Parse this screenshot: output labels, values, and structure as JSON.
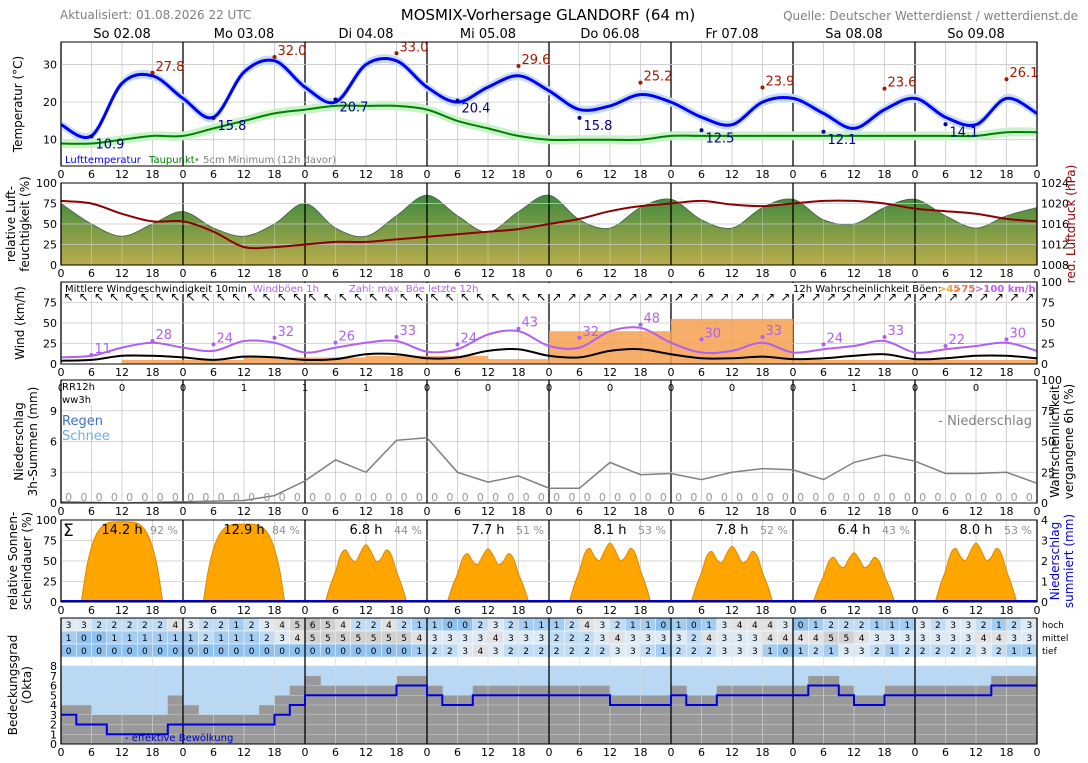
{
  "header": {
    "updated": "Aktualisiert: 01.08.2026 22 UTC",
    "title": "MOSMIX-Vorhersage GLANDORF (64 m)",
    "source": "Quelle: Deutscher Wetterdienst / wetterdienst.de"
  },
  "days": [
    "So 02.08",
    "Mo 03.08",
    "Di 04.08",
    "Mi 05.08",
    "Do 06.08",
    "Fr 07.08",
    "Sa 08.08",
    "So 09.08"
  ],
  "hour_ticks": [
    "0",
    "6",
    "12",
    "18"
  ],
  "colors": {
    "temperature": "#0000ff",
    "dewpoint": "#008000",
    "pressure": "#8b0000",
    "humidity_top": "#3f8a3f",
    "humidity_bottom": "#b9ad4c",
    "wind_mean": "#000000",
    "wind_gust": "#b060f0",
    "gust_prob": "#f5a050",
    "precip_line": "#808080",
    "sunshine": "#ffa500",
    "clouds_fill": "#999999",
    "clouds_sky": "#b8d8f4",
    "effective_cloud": "#0000dd",
    "max_label": "#a01a00",
    "min_label": "#00008b"
  },
  "chart_data": [
    {
      "type": "line",
      "panel": "temperature",
      "ylabel": "Temperatur (°C)",
      "ylim": [
        3,
        36
      ],
      "yticks": [
        10,
        20,
        30
      ],
      "legend": [
        "Lufttemperatur",
        "Taupunkt",
        "• 5cm Minimum (12h davor)"
      ],
      "x_hours": [
        0,
        6,
        12,
        18,
        24,
        30,
        36,
        42,
        48,
        54,
        60,
        66,
        72,
        78,
        84,
        90,
        96,
        102,
        108,
        114,
        120,
        126,
        132,
        138,
        144,
        150,
        156,
        162,
        168,
        174,
        180,
        186,
        192
      ],
      "temperature": [
        14,
        11,
        25,
        27,
        21,
        16,
        28,
        31,
        24,
        20,
        30,
        31,
        24,
        20,
        24,
        27,
        23,
        18,
        19,
        22,
        20,
        16,
        14,
        20,
        21,
        17,
        13,
        18,
        21,
        16,
        14,
        21,
        17
      ],
      "dewpoint": [
        9,
        9,
        10,
        11,
        11,
        13,
        15,
        17,
        18,
        19,
        19,
        19,
        18,
        15,
        13,
        11,
        10,
        10,
        10,
        10,
        11,
        11,
        11,
        11,
        11,
        11,
        11,
        11,
        11,
        11,
        11,
        12,
        12
      ],
      "labels_max": [
        {
          "hour": 18,
          "value": "27.8"
        },
        {
          "hour": 42,
          "value": "32.0"
        },
        {
          "hour": 66,
          "value": "33.0"
        },
        {
          "hour": 90,
          "value": "29.6"
        },
        {
          "hour": 114,
          "value": "25.2"
        },
        {
          "hour": 138,
          "value": "23.9"
        },
        {
          "hour": 162,
          "value": "23.6"
        },
        {
          "hour": 186,
          "value": "26.1"
        }
      ],
      "labels_min": [
        {
          "hour": 6,
          "value": "10.9"
        },
        {
          "hour": 30,
          "value": "15.8"
        },
        {
          "hour": 54,
          "value": "20.7"
        },
        {
          "hour": 78,
          "value": "20.4"
        },
        {
          "hour": 102,
          "value": "15.8"
        },
        {
          "hour": 126,
          "value": "12.5"
        },
        {
          "hour": 150,
          "value": "12.1"
        },
        {
          "hour": 174,
          "value": "14.1"
        }
      ]
    },
    {
      "type": "area",
      "panel": "humidity_pressure",
      "ylabel_left": "relative Luft-feuchtigkeit (%)",
      "ylabel_right": "red. Luftdruck (hPa)",
      "ylim_left": [
        0,
        100
      ],
      "ylim_right": [
        1008,
        1024
      ],
      "yticks_left": [
        0,
        25,
        50,
        75,
        100
      ],
      "yticks_right": [
        1008,
        1012,
        1016,
        1020,
        1024
      ],
      "x_hours": [
        0,
        6,
        12,
        18,
        24,
        30,
        36,
        42,
        48,
        54,
        60,
        66,
        72,
        78,
        84,
        90,
        96,
        102,
        108,
        114,
        120,
        126,
        132,
        138,
        144,
        150,
        156,
        162,
        168,
        174,
        180,
        186,
        192
      ],
      "humidity": [
        75,
        50,
        35,
        50,
        65,
        45,
        35,
        50,
        75,
        45,
        35,
        60,
        85,
        60,
        40,
        65,
        85,
        55,
        45,
        70,
        80,
        55,
        45,
        70,
        80,
        55,
        50,
        70,
        80,
        60,
        45,
        60,
        70
      ],
      "pressure": [
        1020.5,
        1020,
        1018,
        1016.5,
        1016.5,
        1014.5,
        1011.5,
        1011.5,
        1012,
        1012.5,
        1012.5,
        1013,
        1013.5,
        1014,
        1014.5,
        1015,
        1016,
        1017,
        1018.5,
        1019.5,
        1020,
        1020.5,
        1019.8,
        1019.5,
        1020,
        1020.5,
        1020.5,
        1020,
        1019,
        1018.5,
        1018,
        1017,
        1016.5
      ]
    },
    {
      "type": "line",
      "panel": "wind",
      "ylabel": "Wind (km/h)",
      "ylabel_right": "12h Wahrscheinlichkeit Böen (%)",
      "ylim": [
        0,
        100
      ],
      "yticks": [
        0,
        25,
        50,
        75
      ],
      "legend": [
        "Mittlere Windgeschwindigkeit 10min",
        "Windböen 1h",
        "Zahl: max. Böe letzte 12h"
      ],
      "prob_legend": [
        "12h Wahrscheinlichkeit Böen:",
        ">45",
        ">75",
        ">100 km/h"
      ],
      "x_hours": [
        0,
        6,
        12,
        18,
        24,
        30,
        36,
        42,
        48,
        54,
        60,
        66,
        72,
        78,
        84,
        90,
        96,
        102,
        108,
        114,
        120,
        126,
        132,
        138,
        144,
        150,
        156,
        162,
        168,
        174,
        180,
        186,
        192
      ],
      "wind_mean": [
        4,
        5,
        10,
        10,
        8,
        5,
        9,
        8,
        5,
        6,
        12,
        12,
        7,
        8,
        16,
        18,
        10,
        8,
        16,
        18,
        12,
        7,
        7,
        9,
        6,
        7,
        10,
        12,
        6,
        7,
        10,
        10,
        7
      ],
      "wind_gust": [
        8,
        10,
        20,
        26,
        20,
        16,
        28,
        26,
        14,
        20,
        26,
        28,
        15,
        18,
        36,
        40,
        22,
        20,
        40,
        44,
        26,
        14,
        16,
        26,
        14,
        18,
        22,
        28,
        14,
        18,
        22,
        26,
        16
      ],
      "gust_maxima": [
        {
          "hour": 6,
          "value": "11"
        },
        {
          "hour": 18,
          "value": "28"
        },
        {
          "hour": 30,
          "value": "24"
        },
        {
          "hour": 42,
          "value": "32"
        },
        {
          "hour": 54,
          "value": "26"
        },
        {
          "hour": 66,
          "value": "33"
        },
        {
          "hour": 78,
          "value": "24"
        },
        {
          "hour": 90,
          "value": "43"
        },
        {
          "hour": 102,
          "value": "32"
        },
        {
          "hour": 114,
          "value": "48"
        },
        {
          "hour": 126,
          "value": "30"
        },
        {
          "hour": 138,
          "value": "33"
        },
        {
          "hour": 150,
          "value": "24"
        },
        {
          "hour": 162,
          "value": "33"
        },
        {
          "hour": 174,
          "value": "22"
        },
        {
          "hour": 186,
          "value": "30"
        }
      ],
      "gust_prob_12h": [
        0,
        5,
        5,
        8,
        8,
        10,
        10,
        6,
        40,
        40,
        55,
        55,
        5,
        5,
        5,
        5
      ]
    },
    {
      "type": "line",
      "panel": "precipitation",
      "ylabel": "Niederschlag 3h-Summen (mm)",
      "ylabel_right": "Wahrscheinlichkeit vergangene 6h (%)",
      "ylim": [
        0,
        12
      ],
      "yticks": [
        0,
        3,
        6,
        9
      ],
      "ylim_right": [
        0,
        100
      ],
      "yticks_right": [
        0,
        25,
        50,
        75,
        100
      ],
      "row_labels": [
        "RR12h",
        "ww3h"
      ],
      "legend": [
        "Regen",
        "Schnee",
        "- Niederschlag"
      ],
      "rr12h": [
        "0",
        "0",
        "0",
        "1",
        "1",
        "1",
        "0",
        "0",
        "0",
        "0",
        "0",
        "0",
        "0",
        "1",
        "0",
        "0"
      ],
      "precip_3h": [
        "0",
        "0",
        "0",
        "0",
        "0",
        "0",
        "0",
        "0",
        "0",
        "0",
        "0",
        "0",
        "0",
        "0",
        "0",
        "0",
        "0",
        "0",
        "0",
        "0",
        "0",
        "0",
        "0",
        "0",
        "0",
        "0",
        "0",
        "0",
        "0",
        "0",
        "0",
        "0",
        "0",
        "0",
        "0",
        "0",
        "0",
        "0",
        "0",
        "0",
        "0",
        "0",
        "0",
        "0",
        "0",
        "0",
        "0",
        "0",
        "0",
        "0",
        "0",
        "0",
        "0",
        "0",
        "0",
        "0",
        "0",
        "0",
        "0",
        "0",
        "0",
        "0",
        "0",
        "0"
      ],
      "prob_hours": [
        0,
        12,
        24,
        36,
        42,
        48,
        54,
        60,
        66,
        72,
        78,
        84,
        90,
        96,
        102,
        108,
        114,
        120,
        126,
        132,
        138,
        144,
        150,
        156,
        162,
        168,
        174,
        180,
        186,
        192
      ],
      "prob_6h": [
        1,
        0,
        1,
        2,
        6,
        18,
        35,
        25,
        51,
        53,
        25,
        17,
        22,
        12,
        12,
        33,
        23,
        24,
        19,
        25,
        28,
        27,
        19,
        33,
        39,
        34,
        24,
        24,
        25,
        16
      ]
    },
    {
      "type": "area",
      "panel": "sunshine",
      "ylabel": "relative Sonnen-scheindauer (%)",
      "ylabel_right": "Niederschlag summiert (mm)",
      "ylim": [
        0,
        100
      ],
      "yticks": [
        0,
        25,
        50,
        75,
        100
      ],
      "yticks_right": [
        0,
        1,
        2,
        3,
        4
      ],
      "sum_symbol": "Σ",
      "daily_hours": [
        "14.2 h",
        "12.9 h",
        "6.8 h",
        "7.7 h",
        "8.1 h",
        "7.8 h",
        "6.4 h",
        "8.0 h"
      ],
      "daily_percent": [
        "92 %",
        "84 %",
        "44 %",
        "51 %",
        "53 %",
        "52 %",
        "43 %",
        "53 %"
      ],
      "daily_peak": [
        98,
        95,
        70,
        65,
        72,
        68,
        60,
        72
      ]
    },
    {
      "type": "heatmap",
      "panel": "clouds",
      "ylabel": "Bedeckungsgrad (Okta)",
      "ylim": [
        0,
        8
      ],
      "yticks": [
        0,
        1,
        2,
        3,
        4,
        5,
        6,
        7,
        8
      ],
      "row_labels": [
        "hoch",
        "mittel",
        "tief"
      ],
      "legend": "- effektive Bewölkung",
      "hoch": [
        "3",
        "3",
        "2",
        "2",
        "2",
        "2",
        "2",
        "4",
        "3",
        "2",
        "2",
        "1",
        "2",
        "3",
        "4",
        "5",
        "6",
        "5",
        "4",
        "2",
        "2",
        "4",
        "2",
        "1",
        "1",
        "0",
        "0",
        "2",
        "3",
        "2",
        "1",
        "1",
        "1",
        "2",
        "4",
        "3",
        "2",
        "1",
        "1",
        "0",
        "1",
        "0",
        "1",
        "3",
        "4",
        "4",
        "4",
        "3",
        "0",
        "1",
        "2",
        "2",
        "2",
        "1",
        "1",
        "1",
        "3",
        "2",
        "3",
        "3",
        "2",
        "1",
        "2",
        "3"
      ],
      "mittel": [
        "1",
        "0",
        "0",
        "1",
        "1",
        "1",
        "1",
        "1",
        "1",
        "2",
        "1",
        "1",
        "1",
        "2",
        "3",
        "4",
        "5",
        "5",
        "5",
        "5",
        "5",
        "5",
        "5",
        "4",
        "3",
        "3",
        "3",
        "3",
        "4",
        "3",
        "3",
        "3",
        "2",
        "2",
        "2",
        "3",
        "4",
        "3",
        "3",
        "3",
        "3",
        "2",
        "4",
        "3",
        "3",
        "3",
        "4",
        "4",
        "4",
        "4",
        "5",
        "5",
        "4",
        "3",
        "3",
        "3",
        "3",
        "3",
        "3",
        "3",
        "4",
        "4",
        "3",
        "3"
      ],
      "tief": [
        "0",
        "0",
        "0",
        "0",
        "0",
        "0",
        "0",
        "0",
        "0",
        "0",
        "0",
        "0",
        "0",
        "0",
        "0",
        "0",
        "0",
        "0",
        "0",
        "0",
        "0",
        "0",
        "0",
        "1",
        "2",
        "2",
        "3",
        "4",
        "3",
        "2",
        "2",
        "2",
        "2",
        "2",
        "2",
        "2",
        "3",
        "3",
        "2",
        "1",
        "2",
        "2",
        "2",
        "3",
        "3",
        "3",
        "1",
        "0",
        "1",
        "2",
        "1",
        "3",
        "3",
        "2",
        "1",
        "2",
        "2",
        "2",
        "2",
        "2",
        "3",
        "2",
        "1",
        "1"
      ],
      "effective": [
        3,
        2,
        2,
        1,
        1,
        1,
        1,
        2,
        2,
        2,
        2,
        2,
        2,
        2,
        3,
        4,
        5,
        5,
        5,
        5,
        5,
        5,
        6,
        6,
        5,
        4,
        4,
        5,
        5,
        5,
        5,
        5,
        5,
        5,
        5,
        5,
        4,
        4,
        4,
        4,
        5,
        4,
        4,
        5,
        5,
        5,
        5,
        5,
        5,
        6,
        6,
        5,
        4,
        4,
        5,
        5,
        5,
        5,
        5,
        5,
        5,
        6,
        6,
        6
      ]
    }
  ]
}
